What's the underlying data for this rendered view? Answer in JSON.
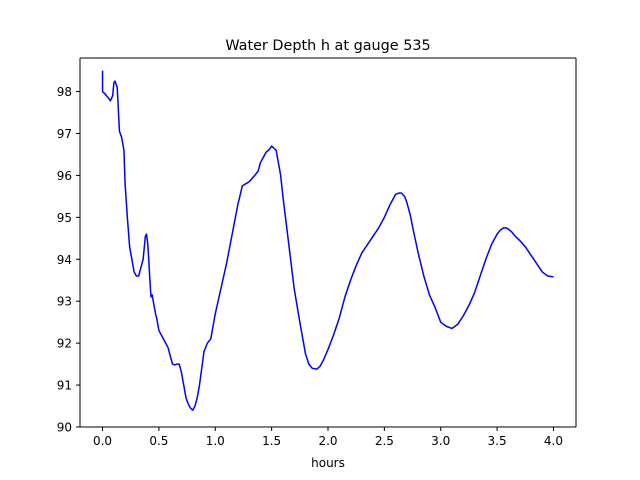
{
  "chart_data": {
    "type": "line",
    "title": "Water Depth h at gauge 535",
    "xlabel": "hours",
    "ylabel": "",
    "xlim": [
      -0.2,
      4.2
    ],
    "ylim": [
      90,
      98.8
    ],
    "xticks": [
      0.0,
      0.5,
      1.0,
      1.5,
      2.0,
      2.5,
      3.0,
      3.5,
      4.0
    ],
    "xtick_labels": [
      "0.0",
      "0.5",
      "1.0",
      "1.5",
      "2.0",
      "2.5",
      "3.0",
      "3.5",
      "4.0"
    ],
    "yticks": [
      90,
      91,
      92,
      93,
      94,
      95,
      96,
      97,
      98
    ],
    "ytick_labels": [
      "90",
      "91",
      "92",
      "93",
      "94",
      "95",
      "96",
      "97",
      "98"
    ],
    "grid": false,
    "series": [
      {
        "color": "#0000ff",
        "x": [
          0.0,
          0.0,
          0.02,
          0.05,
          0.07,
          0.09,
          0.1,
          0.11,
          0.13,
          0.15,
          0.17,
          0.19,
          0.2,
          0.22,
          0.24,
          0.26,
          0.28,
          0.3,
          0.32,
          0.34,
          0.36,
          0.38,
          0.39,
          0.4,
          0.41,
          0.42,
          0.43,
          0.44,
          0.45,
          0.46,
          0.47,
          0.48,
          0.5,
          0.52,
          0.54,
          0.56,
          0.58,
          0.6,
          0.62,
          0.64,
          0.66,
          0.68,
          0.7,
          0.72,
          0.74,
          0.76,
          0.78,
          0.8,
          0.82,
          0.84,
          0.86,
          0.88,
          0.9,
          0.93,
          0.96,
          1.0,
          1.05,
          1.1,
          1.15,
          1.2,
          1.24,
          1.27,
          1.3,
          1.35,
          1.38,
          1.4,
          1.42,
          1.45,
          1.48,
          1.5,
          1.52,
          1.54,
          1.56,
          1.58,
          1.6,
          1.65,
          1.7,
          1.75,
          1.8,
          1.83,
          1.86,
          1.9,
          1.93,
          1.96,
          2.0,
          2.05,
          2.1,
          2.15,
          2.2,
          2.25,
          2.3,
          2.35,
          2.4,
          2.45,
          2.5,
          2.55,
          2.6,
          2.63,
          2.65,
          2.68,
          2.7,
          2.73,
          2.76,
          2.8,
          2.85,
          2.9,
          2.95,
          3.0,
          3.05,
          3.1,
          3.15,
          3.2,
          3.25,
          3.3,
          3.35,
          3.4,
          3.45,
          3.5,
          3.53,
          3.56,
          3.58,
          3.6,
          3.63,
          3.66,
          3.7,
          3.75,
          3.8,
          3.85,
          3.9,
          3.95,
          4.0
        ],
        "y": [
          98.5,
          98.0,
          97.95,
          97.85,
          97.78,
          97.9,
          98.2,
          98.25,
          98.1,
          97.05,
          96.9,
          96.6,
          95.8,
          95.0,
          94.3,
          94.0,
          93.7,
          93.6,
          93.6,
          93.8,
          94.0,
          94.55,
          94.6,
          94.4,
          94.0,
          93.5,
          93.1,
          93.15,
          93.0,
          92.85,
          92.7,
          92.6,
          92.3,
          92.2,
          92.1,
          92.0,
          91.9,
          91.7,
          91.5,
          91.48,
          91.5,
          91.5,
          91.3,
          91.0,
          90.7,
          90.55,
          90.45,
          90.4,
          90.5,
          90.7,
          91.0,
          91.4,
          91.8,
          92.0,
          92.1,
          92.7,
          93.3,
          93.9,
          94.6,
          95.3,
          95.75,
          95.8,
          95.85,
          96.0,
          96.1,
          96.3,
          96.4,
          96.55,
          96.62,
          96.7,
          96.65,
          96.6,
          96.3,
          96.0,
          95.5,
          94.4,
          93.3,
          92.5,
          91.75,
          91.5,
          91.4,
          91.38,
          91.45,
          91.6,
          91.85,
          92.2,
          92.6,
          93.1,
          93.5,
          93.85,
          94.15,
          94.35,
          94.55,
          94.75,
          95.0,
          95.3,
          95.55,
          95.58,
          95.58,
          95.5,
          95.35,
          95.05,
          94.65,
          94.15,
          93.6,
          93.15,
          92.85,
          92.5,
          92.4,
          92.35,
          92.45,
          92.65,
          92.9,
          93.2,
          93.6,
          94.0,
          94.35,
          94.6,
          94.7,
          94.75,
          94.75,
          94.72,
          94.65,
          94.55,
          94.45,
          94.3,
          94.1,
          93.9,
          93.7,
          93.6,
          93.58
        ]
      }
    ]
  }
}
